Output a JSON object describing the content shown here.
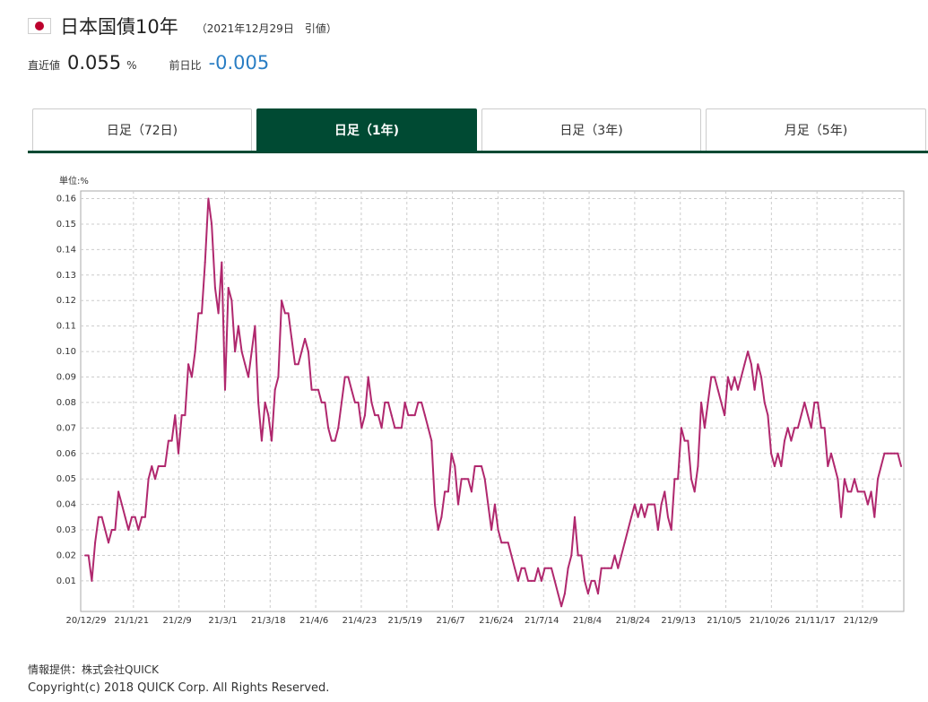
{
  "header": {
    "title": "日本国債10年",
    "date": "（2021年12月29日　引値）",
    "flag_icon": "japan-flag-icon"
  },
  "metrics": {
    "latest_label": "直近値",
    "latest_value": "0.055",
    "unit": "%",
    "change_label": "前日比",
    "change_value": "-0.005",
    "change_color": "#2a7ec4"
  },
  "tabs": [
    {
      "label": "日足（72日)",
      "active": false
    },
    {
      "label": "日足（1年)",
      "active": true
    },
    {
      "label": "日足（3年)",
      "active": false
    },
    {
      "label": "月足（5年)",
      "active": false
    }
  ],
  "colors": {
    "accent": "#004a33",
    "series": "#b0286e"
  },
  "chart_data": {
    "type": "line",
    "unit_label": "単位:%",
    "ylim": [
      -0.002,
      0.163
    ],
    "yticks": [
      0.01,
      0.02,
      0.03,
      0.04,
      0.05,
      0.06,
      0.07,
      0.08,
      0.09,
      0.1,
      0.11,
      0.12,
      0.13,
      0.14,
      0.15,
      0.16
    ],
    "ytick_labels": [
      "0.01",
      "0.02",
      "0.03",
      "0.04",
      "0.05",
      "0.06",
      "0.07",
      "0.08",
      "0.09",
      "0.10",
      "0.11",
      "0.12",
      "0.13",
      "0.14",
      "0.15",
      "0.16"
    ],
    "xtick_labels": [
      "20/12/29",
      "21/1/21",
      "21/2/9",
      "21/3/1",
      "21/3/18",
      "21/4/6",
      "21/4/23",
      "21/5/19",
      "21/6/7",
      "21/6/24",
      "21/7/14",
      "21/8/4",
      "21/8/24",
      "21/9/13",
      "21/10/5",
      "21/10/26",
      "21/11/17",
      "21/12/9"
    ],
    "grid": true,
    "series": [
      {
        "name": "日本国債10年",
        "values": [
          0.02,
          0.02,
          0.01,
          0.025,
          0.035,
          0.035,
          0.03,
          0.025,
          0.03,
          0.03,
          0.045,
          0.04,
          0.035,
          0.03,
          0.035,
          0.035,
          0.03,
          0.035,
          0.035,
          0.05,
          0.055,
          0.05,
          0.055,
          0.055,
          0.055,
          0.065,
          0.065,
          0.075,
          0.06,
          0.075,
          0.075,
          0.095,
          0.09,
          0.1,
          0.115,
          0.115,
          0.135,
          0.16,
          0.15,
          0.125,
          0.115,
          0.135,
          0.085,
          0.125,
          0.12,
          0.1,
          0.11,
          0.1,
          0.095,
          0.09,
          0.1,
          0.11,
          0.08,
          0.065,
          0.08,
          0.075,
          0.065,
          0.085,
          0.09,
          0.12,
          0.115,
          0.115,
          0.105,
          0.095,
          0.095,
          0.1,
          0.105,
          0.1,
          0.085,
          0.085,
          0.085,
          0.08,
          0.08,
          0.07,
          0.065,
          0.065,
          0.07,
          0.08,
          0.09,
          0.09,
          0.085,
          0.08,
          0.08,
          0.07,
          0.075,
          0.09,
          0.08,
          0.075,
          0.075,
          0.07,
          0.08,
          0.08,
          0.075,
          0.07,
          0.07,
          0.07,
          0.08,
          0.075,
          0.075,
          0.075,
          0.08,
          0.08,
          0.075,
          0.07,
          0.065,
          0.04,
          0.03,
          0.035,
          0.045,
          0.045,
          0.06,
          0.055,
          0.04,
          0.05,
          0.05,
          0.05,
          0.045,
          0.055,
          0.055,
          0.055,
          0.05,
          0.04,
          0.03,
          0.04,
          0.03,
          0.025,
          0.025,
          0.025,
          0.02,
          0.015,
          0.01,
          0.015,
          0.015,
          0.01,
          0.01,
          0.01,
          0.015,
          0.01,
          0.015,
          0.015,
          0.015,
          0.01,
          0.005,
          0.0,
          0.005,
          0.015,
          0.02,
          0.035,
          0.02,
          0.02,
          0.01,
          0.005,
          0.01,
          0.01,
          0.005,
          0.015,
          0.015,
          0.015,
          0.015,
          0.02,
          0.015,
          0.02,
          0.025,
          0.03,
          0.035,
          0.04,
          0.035,
          0.04,
          0.035,
          0.04,
          0.04,
          0.04,
          0.03,
          0.04,
          0.045,
          0.035,
          0.03,
          0.05,
          0.05,
          0.07,
          0.065,
          0.065,
          0.05,
          0.045,
          0.055,
          0.08,
          0.07,
          0.08,
          0.09,
          0.09,
          0.085,
          0.08,
          0.075,
          0.09,
          0.085,
          0.09,
          0.085,
          0.09,
          0.095,
          0.1,
          0.095,
          0.085,
          0.095,
          0.09,
          0.08,
          0.075,
          0.06,
          0.055,
          0.06,
          0.055,
          0.065,
          0.07,
          0.065,
          0.07,
          0.07,
          0.075,
          0.08,
          0.075,
          0.07,
          0.08,
          0.08,
          0.07,
          0.07,
          0.055,
          0.06,
          0.055,
          0.05,
          0.035,
          0.05,
          0.045,
          0.045,
          0.05,
          0.045,
          0.045,
          0.045,
          0.04,
          0.045,
          0.035,
          0.05,
          0.055,
          0.06,
          0.06,
          0.06,
          0.06,
          0.06,
          0.055
        ]
      }
    ]
  },
  "footer": {
    "provider": "情報提供：株式会社QUICK",
    "copyright": "Copyright(c) 2018 QUICK Corp. All Rights Reserved."
  }
}
